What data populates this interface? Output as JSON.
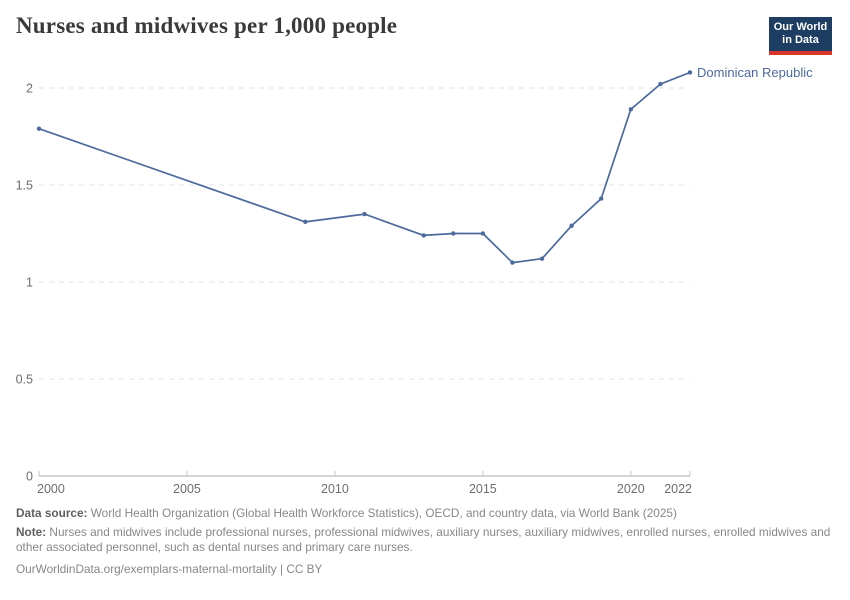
{
  "header": {
    "title": "Nurses and midwives per 1,000 people"
  },
  "logo": {
    "line1": "Our World",
    "line2": "in Data",
    "bg_color": "#1d3d63",
    "accent_color": "#d8352a"
  },
  "chart_data": {
    "type": "line",
    "title": "Nurses and midwives per 1,000 people",
    "x": [
      2000,
      2009,
      2011,
      2013,
      2014,
      2015,
      2016,
      2017,
      2018,
      2019,
      2020,
      2021,
      2022
    ],
    "series": [
      {
        "name": "Dominican Republic",
        "color": "#4C6A9C",
        "values": [
          1.79,
          1.31,
          1.35,
          1.24,
          1.25,
          1.25,
          1.1,
          1.12,
          1.29,
          1.43,
          1.89,
          2.02,
          2.08
        ]
      }
    ],
    "xlabel": "",
    "ylabel": "",
    "xlim": [
      2000,
      2022
    ],
    "ylim": [
      0,
      2.1
    ],
    "x_ticks": [
      {
        "v": 2000,
        "label": "2000"
      },
      {
        "v": 2005,
        "label": "2005"
      },
      {
        "v": 2010,
        "label": "2010"
      },
      {
        "v": 2015,
        "label": "2015"
      },
      {
        "v": 2020,
        "label": "2020"
      },
      {
        "v": 2022,
        "label": "2022"
      }
    ],
    "y_ticks": [
      {
        "v": 0,
        "label": "0"
      },
      {
        "v": 0.5,
        "label": "0.5"
      },
      {
        "v": 1,
        "label": "1"
      },
      {
        "v": 1.5,
        "label": "1.5"
      },
      {
        "v": 2,
        "label": "2"
      }
    ],
    "grid": "horizontal-dashed",
    "legend": "end-of-line-label"
  },
  "colors": {
    "grid": "#e3e3e3",
    "axis": "#a8a8a8",
    "tick": "#c4c4c4",
    "tick_text": "#6e6e6e"
  },
  "footer": {
    "data_source_label": "Data source:",
    "data_source_text": " World Health Organization (Global Health Workforce Statistics), OECD, and country data, via World Bank (2025)",
    "note_label": "Note:",
    "note_text": " Nurses and midwives include professional nurses, professional midwives, auxiliary nurses, auxiliary midwives, enrolled nurses, enrolled midwives and other associated personnel, such as dental nurses and primary care nurses.",
    "citation": "OurWorldinData.org/exemplars-maternal-mortality | CC BY"
  }
}
